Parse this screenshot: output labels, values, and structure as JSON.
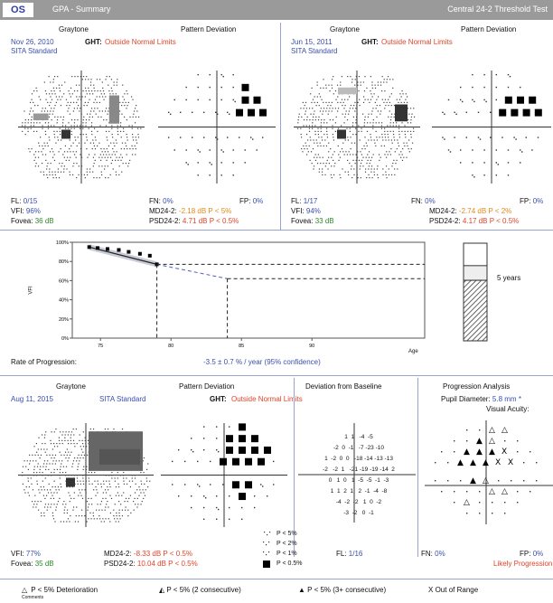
{
  "header": {
    "eye": "OS",
    "title": "GPA - Summary",
    "test": "Central 24-2 Threshold Test"
  },
  "exam1": {
    "graytone": "Graytone",
    "pattern_deviation": "Pattern Deviation",
    "date": "Nov 26, 2010",
    "strategy": "SITA Standard",
    "ght_label": "GHT:",
    "ght_value": "Outside Normal Limits",
    "fl_label": "FL:",
    "fl_value": "0/15",
    "fn_label": "FN:",
    "fn_value": "0%",
    "fp_label": "FP:",
    "fp_value": "0%",
    "vfi_label": "VFI:",
    "vfi_value": "96%",
    "fovea_label": "Fovea:",
    "fovea_value": "36 dB",
    "md_label": "MD24-2:",
    "md_value": "-2.18 dB P < 5%",
    "psd_label": "PSD24-2:",
    "psd_value": "4.71 dB P < 0.5%"
  },
  "exam2": {
    "graytone": "Graytone",
    "pattern_deviation": "Pattern Deviation",
    "date": "Jun 15, 2011",
    "strategy": "SITA Standard",
    "ght_label": "GHT:",
    "ght_value": "Outside Normal Limits",
    "fl_label": "FL:",
    "fl_value": "1/17",
    "fn_label": "FN:",
    "fn_value": "0%",
    "fp_label": "FP:",
    "fp_value": "0%",
    "vfi_label": "VFI:",
    "vfi_value": "94%",
    "fovea_label": "Fovea:",
    "fovea_value": "33 dB",
    "md_label": "MD24-2:",
    "md_value": "-2.74 dB P < 2%",
    "psd_label": "PSD24-2:",
    "psd_value": "4.17 dB P < 0.5%"
  },
  "vfi_chart": {
    "rate_label": "Rate of Progression:",
    "rate_value": "-3.5 ± 0.7 % / year (95% confidence)",
    "five_years": "5 years",
    "age_label": "Age",
    "y_label": "VFI",
    "y_ticks": [
      "100%",
      "80%",
      "60%",
      "40%",
      "20%",
      "0%"
    ],
    "x_ticks": [
      "75",
      "80",
      "85",
      "90"
    ]
  },
  "chart_data": {
    "type": "line",
    "xlabel": "Age",
    "ylabel": "VFI",
    "ylim": [
      0,
      100
    ],
    "xlim": [
      73,
      98
    ],
    "series": [
      {
        "x": [
          74.2,
          74.8,
          75.5,
          76.3,
          77.0,
          77.8,
          78.5,
          79.0
        ],
        "values": [
          95,
          94,
          93,
          92,
          90,
          88,
          86,
          77
        ]
      }
    ]
  },
  "exam3": {
    "graytone": "Graytone",
    "pattern_deviation": "Pattern Deviation",
    "deviation_baseline": "Deviation from Baseline",
    "progression_analysis": "Progression Analysis",
    "date": "Aug 11, 2015",
    "strategy": "SITA Standard",
    "ght_label": "GHT:",
    "ght_value": "Outside Normal Limits",
    "pupil_label": "Pupil Diameter:",
    "pupil_value": "5.8 mm *",
    "visual_acuity": "Visual Acuity:",
    "vfi_label": "VFI:",
    "vfi_value": "77%",
    "fovea_label": "Fovea:",
    "fovea_value": "35 dB",
    "md_label": "MD24-2:",
    "md_value": "-8.33 dB P < 0.5%",
    "psd_label": "PSD24-2:",
    "psd_value": "10.04 dB P < 0.5%",
    "fl_label": "FL:",
    "fl_value": "1/16",
    "fn_label": "FN:",
    "fn_value": "0%",
    "fp_label": "FP:",
    "fp_value": "0%",
    "likely": "Likely Progression",
    "deviation_rows": [
      "1  1   -4  -5",
      "-2  0  -1   -7 -23 -10",
      "1  -2  0  0   -18 -14 -13 -13",
      "-2   -2  1   -21 -19 -19 -14  2",
      "0   1  0   1  -5  -5  -1  -3",
      "1  1  2  1   2  -1  -4  -8",
      "-4  -2  -2   1  0  -2",
      "-3  -2   0  -1"
    ],
    "prob_legend": [
      "P < 5%",
      "P < 2%",
      "P < 1%",
      "P < 0.5%"
    ]
  },
  "footer_legend": {
    "deterioration": "P < 5% Deterioration",
    "two_consecutive": "P < 5% (2 consecutive)",
    "three_consecutive": "P < 5% (3+ consecutive)",
    "out_of_range": "Out of Range",
    "comments": "Comments"
  },
  "colors": {
    "header_bar": "#9a9a9a",
    "accent_blue": "#3a4fb0",
    "alert_red": "#e0442a",
    "warn_orange": "#e08a1e",
    "ok_green": "#2e8a2e"
  }
}
